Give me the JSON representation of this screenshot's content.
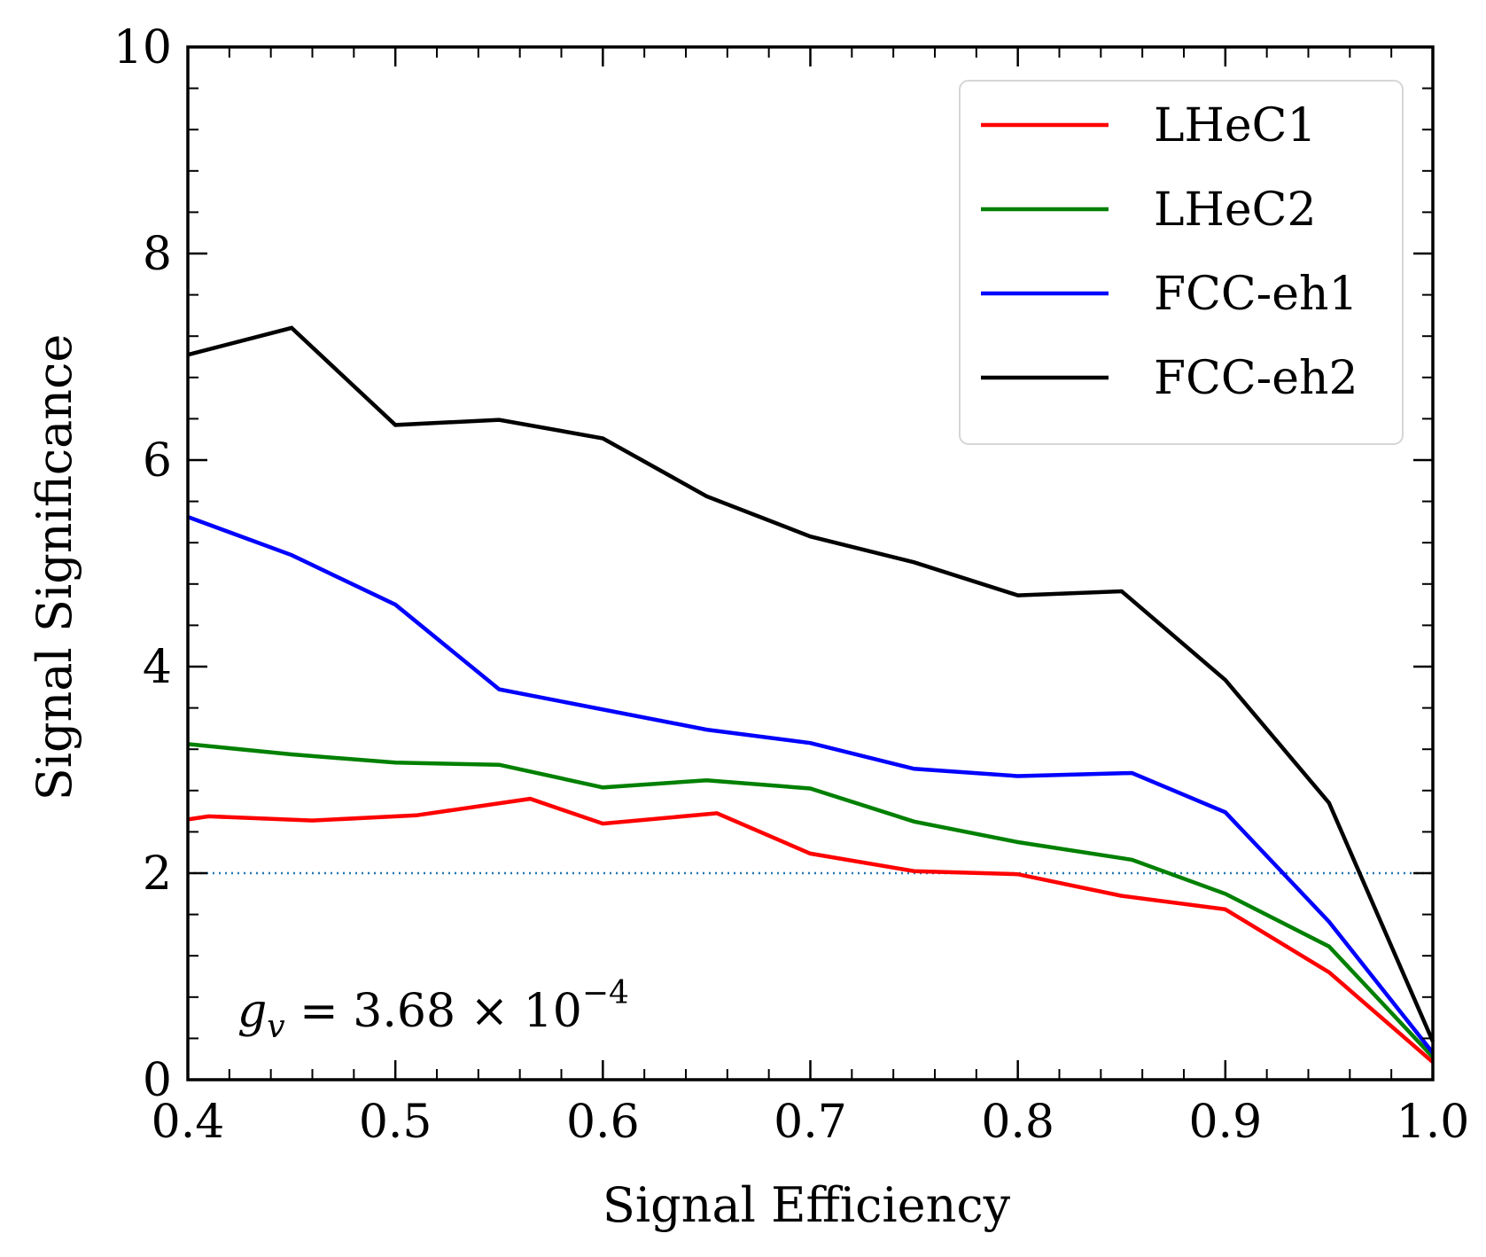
{
  "chart_data": {
    "type": "line",
    "xlabel": "Signal Efficiency",
    "ylabel": "Signal Significance",
    "xlim": [
      0.4,
      1.0
    ],
    "ylim": [
      0,
      10
    ],
    "xticks": [
      "0.4",
      "0.5",
      "0.6",
      "0.7",
      "0.8",
      "0.9",
      "1.0"
    ],
    "yticks": [
      "0",
      "2",
      "4",
      "6",
      "8",
      "10"
    ],
    "legend_placement": "top-right",
    "annotation": {
      "base": "g",
      "sub": "v",
      "mid": " = 3.68 × 10",
      "sup": "−4"
    },
    "reference_line": {
      "y": 2,
      "style": "dotted",
      "color": "#1f77b4"
    },
    "series": [
      {
        "name": "LHeC1",
        "color": "#ff0000",
        "x": [
          0.4,
          0.41,
          0.46,
          0.51,
          0.565,
          0.6,
          0.655,
          0.7,
          0.75,
          0.8,
          0.85,
          0.9,
          0.95,
          1.0
        ],
        "y": [
          2.52,
          2.55,
          2.51,
          2.56,
          2.72,
          2.48,
          2.58,
          2.19,
          2.02,
          1.99,
          1.78,
          1.65,
          1.04,
          0.17
        ]
      },
      {
        "name": "LHeC2",
        "color": "#008000",
        "x": [
          0.4,
          0.45,
          0.5,
          0.55,
          0.6,
          0.65,
          0.7,
          0.75,
          0.8,
          0.855,
          0.9,
          0.95,
          1.0
        ],
        "y": [
          3.25,
          3.15,
          3.07,
          3.05,
          2.83,
          2.9,
          2.82,
          2.5,
          2.3,
          2.13,
          1.8,
          1.29,
          0.22
        ]
      },
      {
        "name": "FCC-eh1",
        "color": "#0000ff",
        "x": [
          0.4,
          0.45,
          0.5,
          0.55,
          0.65,
          0.7,
          0.75,
          0.8,
          0.855,
          0.9,
          0.95,
          1.0
        ],
        "y": [
          5.45,
          5.08,
          4.6,
          3.78,
          3.39,
          3.26,
          3.01,
          2.94,
          2.97,
          2.59,
          1.53,
          0.26
        ]
      },
      {
        "name": "FCC-eh2",
        "color": "#000000",
        "x": [
          0.4,
          0.45,
          0.5,
          0.55,
          0.6,
          0.65,
          0.7,
          0.75,
          0.8,
          0.85,
          0.9,
          0.95,
          1.0
        ],
        "y": [
          7.02,
          7.28,
          6.34,
          6.39,
          6.21,
          5.65,
          5.26,
          5.01,
          4.69,
          4.73,
          3.87,
          2.68,
          0.37
        ]
      }
    ]
  }
}
